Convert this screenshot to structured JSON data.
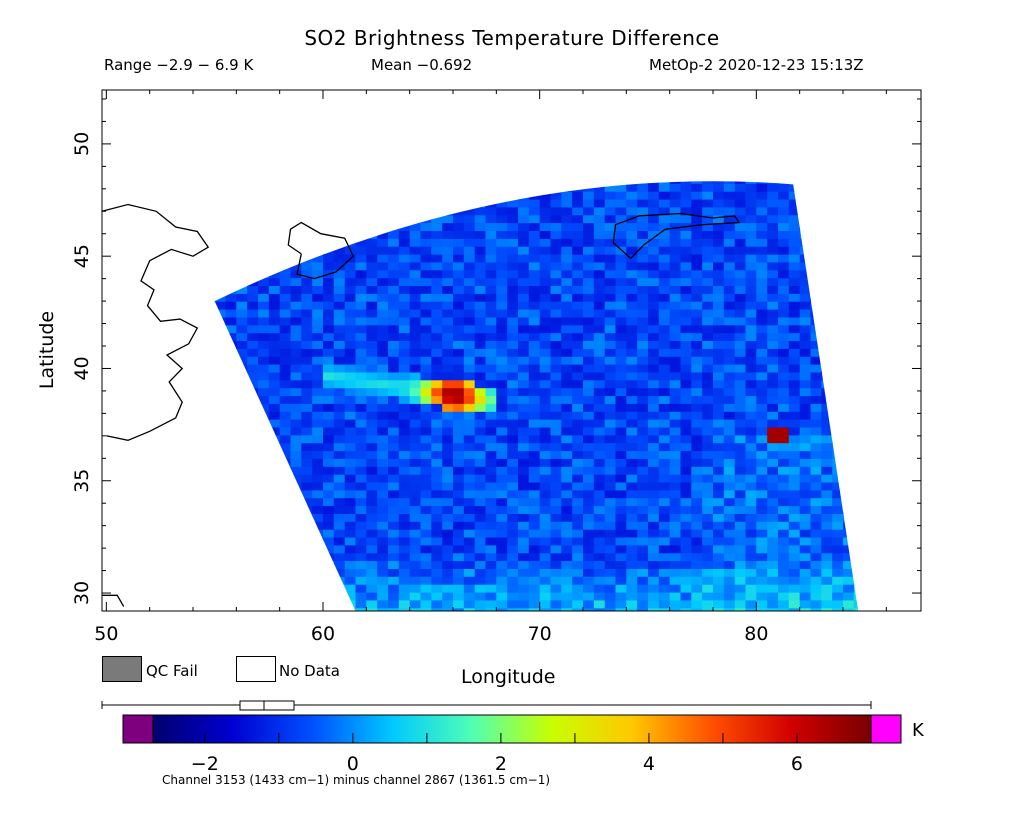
{
  "chart_data": {
    "type": "heatmap",
    "title": "SO2 Brightness Temperature Difference",
    "stats": {
      "range": "Range −2.9 − 6.9 K",
      "mean": "Mean −0.692",
      "stamp": "MetOp-2 2020-12-23 15:13Z"
    },
    "xlabel": "Longitude",
    "ylabel": "Latitude",
    "xlim": [
      49.8,
      87.6
    ],
    "ylim": [
      29.2,
      52.4
    ],
    "x_ticks": [
      50,
      60,
      70,
      80
    ],
    "y_ticks": [
      30,
      35,
      40,
      45,
      50
    ],
    "swath": {
      "top_left": [
        55.0,
        43.0
      ],
      "top_right": [
        81.7,
        48.2
      ],
      "bottom_left": [
        61.5,
        29.2
      ],
      "bottom_right": [
        84.7,
        29.2
      ],
      "background_value": -0.7,
      "features": [
        {
          "kind": "plume",
          "lon": [
            60.0,
            67.5
          ],
          "lat": [
            39.5,
            38.4
          ],
          "peak_value": 6.9,
          "peak_lon": 65.8,
          "peak_lat": 38.7
        },
        {
          "kind": "hotspot",
          "lon": 80.7,
          "lat": 36.9,
          "value": 6.5
        },
        {
          "kind": "enhanced",
          "region": "southern edge",
          "value": 0.6
        }
      ]
    },
    "colorbar": {
      "unit": "K",
      "min": -2.7,
      "max": 7.0,
      "ticks": [
        -2,
        0,
        2,
        4,
        6
      ],
      "colors": [
        "#00006e",
        "#0000d2",
        "#0050ff",
        "#00c8ff",
        "#50ffb4",
        "#c8ff00",
        "#ffc800",
        "#ff5000",
        "#d20000",
        "#780000"
      ],
      "low_flag_color": "#7f007f",
      "high_flag_color": "#ff00ff"
    },
    "legend": {
      "qc_fail": "QC Fail",
      "no_data": "No Data",
      "qc_fail_color": "#7a7a7a"
    },
    "footnote": "Channel 3153 (1433 cm−1) minus channel 2867 (1361.5 cm−1)"
  }
}
